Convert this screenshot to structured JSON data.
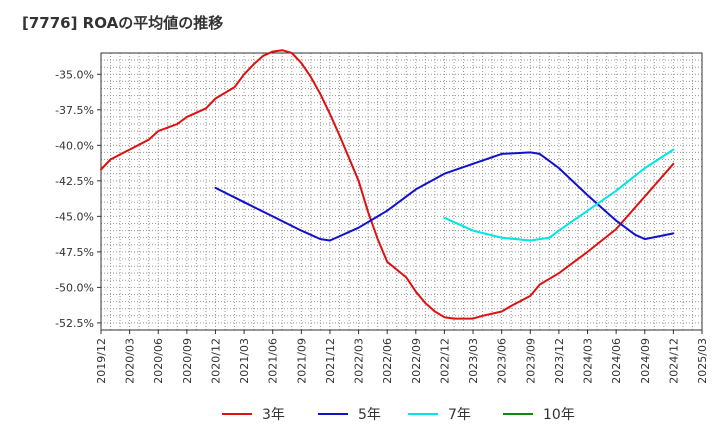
{
  "chart_data": {
    "type": "line",
    "title": "[7776]  ROAの平均値の推移",
    "xlabel": "",
    "ylabel": "",
    "x_ticks": [
      "2019/12",
      "2020/03",
      "2020/06",
      "2020/09",
      "2020/12",
      "2021/03",
      "2021/06",
      "2021/09",
      "2021/12",
      "2022/03",
      "2022/06",
      "2022/09",
      "2022/12",
      "2023/03",
      "2023/06",
      "2023/09",
      "2023/12",
      "2024/03",
      "2024/06",
      "2024/09",
      "2024/12",
      "2025/03"
    ],
    "y_ticks": [
      "-35.0%",
      "-37.5%",
      "-40.0%",
      "-42.5%",
      "-45.0%",
      "-47.5%",
      "-50.0%",
      "-52.5%"
    ],
    "ylim": [
      -53.0,
      -33.5
    ],
    "grid": true,
    "legend_position": "bottom",
    "series": [
      {
        "name": "3年",
        "color": "#dd1111",
        "x": [
          "2019/12",
          "2020/01",
          "2020/03",
          "2020/05",
          "2020/06",
          "2020/08",
          "2020/09",
          "2020/11",
          "2020/12",
          "2021/02",
          "2021/03",
          "2021/04",
          "2021/05",
          "2021/06",
          "2021/07",
          "2021/08",
          "2021/09",
          "2021/10",
          "2021/11",
          "2021/12",
          "2022/01",
          "2022/03",
          "2022/04",
          "2022/05",
          "2022/06",
          "2022/08",
          "2022/09",
          "2022/10",
          "2022/11",
          "2022/12",
          "2023/01",
          "2023/03",
          "2023/04",
          "2023/06",
          "2023/07",
          "2023/09",
          "2023/10",
          "2023/12",
          "2024/03",
          "2024/06",
          "2024/09",
          "2024/12"
        ],
        "values": [
          -41.7,
          -41.0,
          -40.3,
          -39.6,
          -39.0,
          -38.5,
          -38.0,
          -37.4,
          -36.7,
          -35.9,
          -35.0,
          -34.3,
          -33.7,
          -33.4,
          -33.3,
          -33.5,
          -34.2,
          -35.2,
          -36.4,
          -37.8,
          -39.3,
          -42.5,
          -44.7,
          -46.6,
          -48.2,
          -49.3,
          -50.3,
          -51.1,
          -51.7,
          -52.1,
          -52.2,
          -52.2,
          -52.0,
          -51.7,
          -51.3,
          -50.6,
          -49.8,
          -49.0,
          -47.5,
          -45.9,
          -43.6,
          -41.3
        ]
      },
      {
        "name": "5年",
        "color": "#1111cc",
        "x": [
          "2020/12",
          "2021/03",
          "2021/06",
          "2021/09",
          "2021/10",
          "2021/11",
          "2021/12",
          "2022/03",
          "2022/06",
          "2022/09",
          "2022/12",
          "2023/03",
          "2023/06",
          "2023/09",
          "2023/10",
          "2023/12",
          "2024/03",
          "2024/06",
          "2024/08",
          "2024/09",
          "2024/12"
        ],
        "values": [
          -43.0,
          -44.0,
          -45.0,
          -46.0,
          -46.3,
          -46.6,
          -46.7,
          -45.8,
          -44.6,
          -43.1,
          -42.0,
          -41.3,
          -40.6,
          -40.5,
          -40.6,
          -41.6,
          -43.5,
          -45.3,
          -46.3,
          -46.6,
          -46.2
        ]
      },
      {
        "name": "7年",
        "color": "#00e5e5",
        "x": [
          "2022/12",
          "2023/03",
          "2023/06",
          "2023/09",
          "2023/11",
          "2023/12",
          "2024/03",
          "2024/06",
          "2024/09",
          "2024/12"
        ],
        "values": [
          -45.1,
          -46.0,
          -46.5,
          -46.7,
          -46.5,
          -46.0,
          -44.6,
          -43.2,
          -41.6,
          -40.3
        ]
      },
      {
        "name": "10年",
        "color": "#118811",
        "x": [],
        "values": []
      }
    ]
  }
}
